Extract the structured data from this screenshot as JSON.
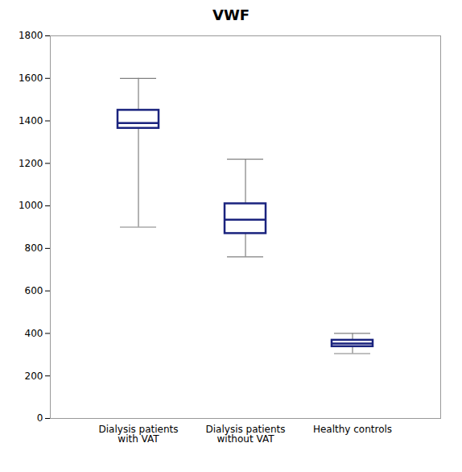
{
  "chart_data": {
    "type": "box",
    "title": "VWF",
    "categories": [
      "Dialysis patients\nwith VAT",
      "Dialysis patients\nwithout VAT",
      "Healthy controls"
    ],
    "boxes": [
      {
        "q1": 1365,
        "median": 1390,
        "q3": 1450,
        "whisker_low": 900,
        "whisker_high": 1600
      },
      {
        "q1": 870,
        "median": 935,
        "q3": 1010,
        "whisker_low": 760,
        "whisker_high": 1220
      },
      {
        "q1": 338,
        "median": 352,
        "q3": 368,
        "whisker_low": 305,
        "whisker_high": 400
      }
    ],
    "color": "#1a237e",
    "ylim": [
      0,
      1800
    ],
    "yticks": [
      0,
      200,
      400,
      600,
      800,
      1000,
      1200,
      1400,
      1600,
      1800
    ]
  }
}
